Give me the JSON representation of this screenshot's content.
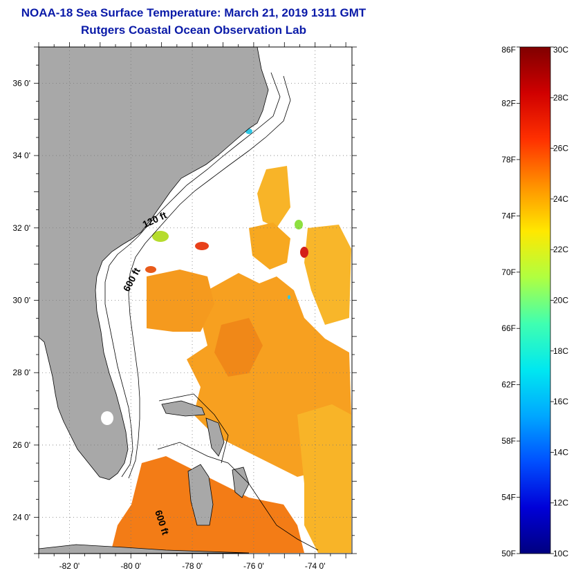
{
  "header": {
    "title": "NOAA-18 Sea Surface Temperature:  March 21, 2019 1311 GMT",
    "subtitle": "Rutgers Coastal Ocean Observation Lab"
  },
  "map": {
    "lon_range": [
      -83.0,
      -72.8
    ],
    "lat_range": [
      23.0,
      37.0
    ],
    "lon_ticks": [
      {
        "value": -82,
        "label": "-82 0'"
      },
      {
        "value": -80,
        "label": "-80 0'"
      },
      {
        "value": -78,
        "label": "-78 0'"
      },
      {
        "value": -76,
        "label": "-76 0'"
      },
      {
        "value": -74,
        "label": "-74 0'"
      }
    ],
    "lat_ticks": [
      {
        "value": 36,
        "label": "36 0'"
      },
      {
        "value": 34,
        "label": "34 0'"
      },
      {
        "value": 32,
        "label": "32 0'"
      },
      {
        "value": 30,
        "label": "30 0'"
      },
      {
        "value": 28,
        "label": "28 0'"
      },
      {
        "value": 26,
        "label": "26 0'"
      },
      {
        "value": 24,
        "label": "24 0'"
      }
    ],
    "contour_labels": [
      "120 ft",
      "600 ft",
      "600 ft"
    ],
    "colors": {
      "land": "#a8a8a8",
      "frame": "#000000",
      "grid": "#777777",
      "sst_dominant": "#f7a020",
      "sst_warm": "#f37c16",
      "sst_hot": "#e8401a",
      "sst_cool": "#b6dc2e",
      "sst_cold": "#2fc8e6"
    }
  },
  "colorbar": {
    "range_c": [
      10,
      30
    ],
    "range_f": [
      50,
      86
    ],
    "f_labels": [
      "86F",
      "82F",
      "78F",
      "74F",
      "70F",
      "66F",
      "62F",
      "58F",
      "54F",
      "50F"
    ],
    "c_labels": [
      "30C",
      "28C",
      "26C",
      "24C",
      "22C",
      "20C",
      "18C",
      "16C",
      "14C",
      "12C",
      "10C"
    ],
    "stops": [
      "#000080",
      "#0000d8",
      "#0050ff",
      "#00a8ff",
      "#00e8f0",
      "#40ffb0",
      "#b0ff40",
      "#ffe800",
      "#ff9000",
      "#ff3000",
      "#d00000",
      "#800000"
    ]
  }
}
